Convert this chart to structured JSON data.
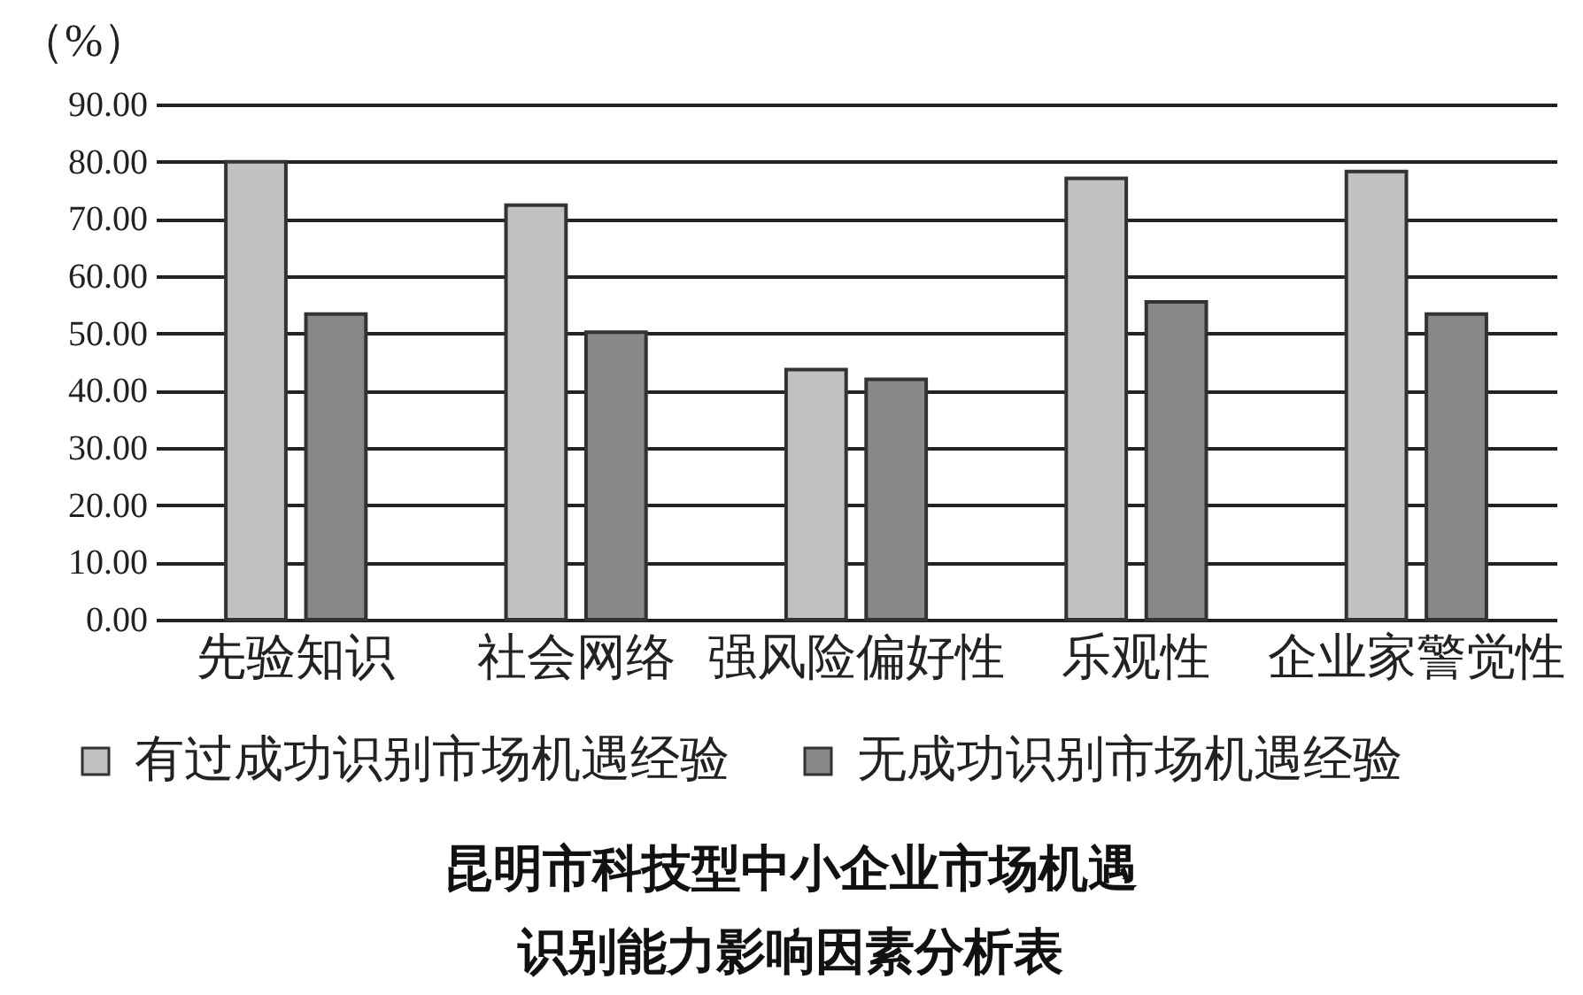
{
  "chart_data": {
    "type": "bar",
    "title": "昆明市科技型中小企业市场机遇识别能力影响因素分析表",
    "ylabel": "（%）",
    "categories": [
      "先验知识",
      "社会网络",
      "强风险偏好性",
      "乐观性",
      "企业家警觉性"
    ],
    "series": [
      {
        "name": "有过成功识别市场机遇经验",
        "color": "#c0c1c3",
        "values": [
          80,
          72.4,
          43.7,
          77.1,
          78.3
        ]
      },
      {
        "name": "无成功识别市场机遇经验",
        "color": "#87888a",
        "values": [
          53.4,
          50.2,
          42.0,
          55.5,
          53.4
        ]
      }
    ],
    "ylim": [
      0,
      90
    ],
    "yticks": [
      {
        "value": 0,
        "label": "0.00"
      },
      {
        "value": 10,
        "label": "10.00"
      },
      {
        "value": 20,
        "label": "20.00"
      },
      {
        "value": 30,
        "label": "30.00"
      },
      {
        "value": 40,
        "label": "40.00"
      },
      {
        "value": 50,
        "label": "50.00"
      },
      {
        "value": 60,
        "label": "60.00"
      },
      {
        "value": 70,
        "label": "70.00"
      },
      {
        "value": 80,
        "label": "80.00"
      },
      {
        "value": 90,
        "label": "90.00"
      }
    ],
    "grid": "y",
    "legend": "bottom"
  }
}
